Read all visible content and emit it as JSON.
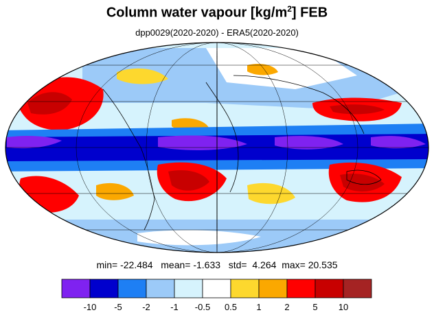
{
  "chart_data": {
    "type": "map",
    "title_main": "Column water vapour [kg/m",
    "title_sup": "2",
    "title_tail": "] FEB",
    "subtitle": "dpp0029(2020-2020) - ERA5(2020-2020)",
    "stats": {
      "min_label": "min=",
      "min": "-22.484",
      "mean_label": "mean=",
      "mean": "-1.633",
      "std_label": "std=",
      "std": "4.264",
      "max_label": "max=",
      "max": "20.535"
    },
    "colorbar": {
      "colors": [
        "#7f22f0",
        "#0000cd",
        "#1e7ff4",
        "#9ccaf8",
        "#d6f3fd",
        "#ffffff",
        "#fdd82e",
        "#fba800",
        "#ff0000",
        "#c80000",
        "#a52323"
      ],
      "tick_labels": [
        "-10",
        "-5",
        "-2",
        "-1",
        "-0.5",
        "0.5",
        "1",
        "2",
        "5",
        "10"
      ]
    },
    "colors": {
      "coastline": "#000000",
      "grid": "#000000"
    }
  }
}
